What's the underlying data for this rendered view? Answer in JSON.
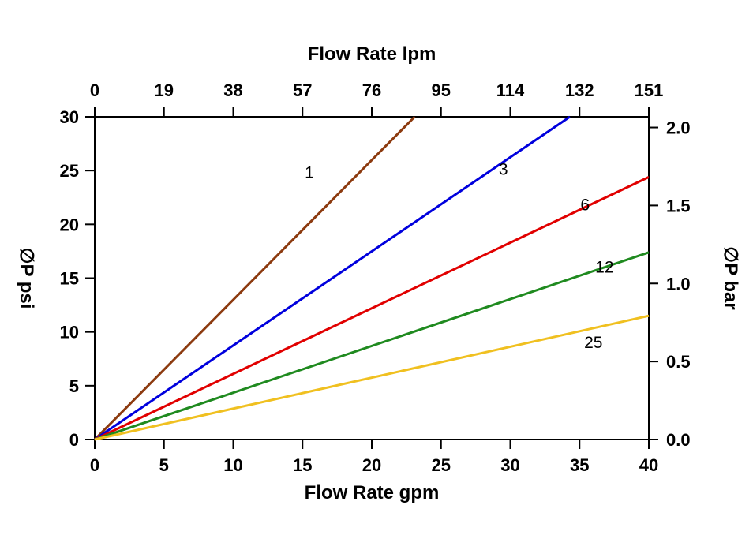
{
  "figure": {
    "background": "#ffffff"
  },
  "chart_data": {
    "type": "line",
    "title_top_axis": "Flow Rate lpm",
    "xlabel_bottom": "Flow Rate gpm",
    "ylabel_left": "∅P psi",
    "ylabel_right": "∅P bar",
    "xlim": [
      0,
      40
    ],
    "ylim": [
      0,
      30
    ],
    "bar_per_psi": 0.0689476,
    "x_ticks_gpm": [
      0,
      5,
      10,
      15,
      20,
      25,
      30,
      35,
      40
    ],
    "x_ticks_lpm": [
      "0",
      "19",
      "38",
      "57",
      "76",
      "95",
      "114",
      "132",
      "151"
    ],
    "y_ticks_psi": [
      0,
      5,
      10,
      15,
      20,
      25,
      30
    ],
    "y_ticks_bar": [
      "0.0",
      "0.5",
      "1.0",
      "1.5",
      "2.0"
    ],
    "grid": false,
    "legend": "inline-labels",
    "series": [
      {
        "label": "1",
        "color": "#8c3a0f",
        "points": [
          [
            0,
            0
          ],
          [
            23.1,
            30
          ]
        ],
        "label_pos": [
          15.5,
          24.3
        ]
      },
      {
        "label": "3",
        "color": "#0000dd",
        "points": [
          [
            0,
            0
          ],
          [
            34.3,
            30
          ]
        ],
        "label_pos": [
          29.5,
          24.6
        ]
      },
      {
        "label": "6",
        "color": "#e10000",
        "points": [
          [
            0,
            0
          ],
          [
            40,
            24.4
          ]
        ],
        "label_pos": [
          35.4,
          21.3
        ]
      },
      {
        "label": "12",
        "color": "#1f8a1f",
        "points": [
          [
            0,
            0
          ],
          [
            40,
            17.4
          ]
        ],
        "label_pos": [
          36.8,
          15.5
        ]
      },
      {
        "label": "25",
        "color": "#f0c020",
        "points": [
          [
            0,
            0
          ],
          [
            40,
            11.5
          ]
        ],
        "label_pos": [
          36.0,
          8.5
        ]
      }
    ]
  }
}
